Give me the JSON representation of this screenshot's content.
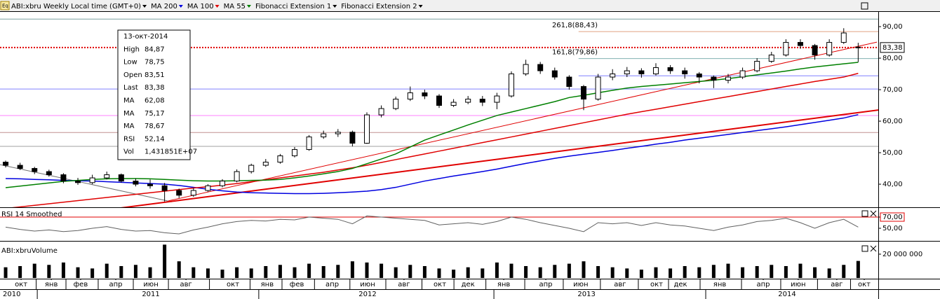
{
  "toolbar": {
    "symbol": "ABI:xbru Weekly Local time (GMT+0)",
    "studies": [
      {
        "label": "MA 200",
        "color": "#0000e0"
      },
      {
        "label": "MA 100",
        "color": "#e00000"
      },
      {
        "label": "MA 55",
        "color": "#008000"
      },
      {
        "label": "Fibonacci Extension 1",
        "color": "#000000"
      },
      {
        "label": "Fibonacci Extension 2",
        "color": "#000000"
      }
    ]
  },
  "info_box": {
    "date": "13-окт-2014",
    "rows": [
      {
        "label": "High",
        "value": "84,87",
        "color": "#000000"
      },
      {
        "label": "Low",
        "value": "78,75",
        "color": "#000000"
      },
      {
        "label": "Open",
        "value": "83,51",
        "color": "#000000"
      },
      {
        "label": "Last",
        "value": "83,38",
        "color": "#000000"
      },
      {
        "label": "MA",
        "value": "62,08",
        "color": "#0000e0"
      },
      {
        "label": "MA",
        "value": "75,17",
        "color": "#e00000"
      },
      {
        "label": "MA",
        "value": "78,67",
        "color": "#008000"
      },
      {
        "label": "RSI",
        "value": "52,14",
        "color": "#000000"
      },
      {
        "label": "Vol",
        "value": "1,431851E+07",
        "color": "#000000"
      }
    ]
  },
  "x_axis": {
    "xlim": [
      -0.39,
      60.39
    ],
    "months": [
      {
        "value": 1.07,
        "label": "окт"
      },
      {
        "value": 3.16,
        "label": "янв"
      },
      {
        "value": 5.19,
        "label": "фев"
      },
      {
        "value": 7.62,
        "label": "апр"
      },
      {
        "value": 10.05,
        "label": "июн"
      },
      {
        "value": 12.48,
        "label": "авг"
      },
      {
        "value": 15.73,
        "label": "окт"
      },
      {
        "value": 18.1,
        "label": "янв"
      },
      {
        "value": 20.15,
        "label": "фев"
      },
      {
        "value": 22.6,
        "label": "апр"
      },
      {
        "value": 25.05,
        "label": "июн"
      },
      {
        "value": 27.57,
        "label": "авг"
      },
      {
        "value": 30.05,
        "label": "окт"
      },
      {
        "value": 32.0,
        "label": "дек"
      },
      {
        "value": 34.47,
        "label": "янв"
      },
      {
        "value": 37.38,
        "label": "апр"
      },
      {
        "value": 39.8,
        "label": "июн"
      },
      {
        "value": 42.52,
        "label": "авг"
      },
      {
        "value": 45.05,
        "label": "окт"
      },
      {
        "value": 46.7,
        "label": "дек"
      },
      {
        "value": 49.42,
        "label": "янв"
      },
      {
        "value": 52.43,
        "label": "апр"
      },
      {
        "value": 54.85,
        "label": "июн"
      },
      {
        "value": 57.52,
        "label": "авг"
      },
      {
        "value": 59.42,
        "label": "окт"
      }
    ],
    "years": [
      {
        "value": 0.83,
        "label": "2010"
      },
      {
        "value": 10.05,
        "label": "2011"
      },
      {
        "value": 25.05,
        "label": "2012"
      },
      {
        "value": 40.2,
        "label": "2013"
      },
      {
        "value": 54.08,
        "label": "2014"
      }
    ]
  },
  "chart_data": [
    {
      "type": "candlestick",
      "open": [
        47,
        46,
        45,
        44,
        43,
        41,
        40.5,
        42,
        43,
        41,
        40,
        39.5,
        38,
        36.5,
        38,
        39.5,
        41,
        44,
        46,
        47,
        49,
        51,
        55,
        56,
        56.5,
        53,
        62,
        64,
        67,
        69,
        68,
        65,
        66,
        67,
        66,
        68,
        75,
        78,
        76,
        74,
        71,
        67,
        74,
        75,
        76,
        75,
        77,
        76,
        75,
        74,
        73,
        74,
        76,
        79,
        81,
        85,
        84,
        81,
        85,
        83.51
      ],
      "high": [
        47.5,
        46.8,
        45.5,
        44.6,
        43.5,
        42,
        43,
        44,
        43.4,
        41.8,
        41.5,
        40.4,
        38.6,
        38.8,
        40,
        41.6,
        44.7,
        46.5,
        48,
        49.6,
        51.8,
        55.6,
        57,
        57.5,
        57,
        62.8,
        65,
        67.8,
        71,
        70,
        68.6,
        67,
        68,
        68,
        69,
        75.8,
        79.5,
        78.8,
        77,
        74.6,
        71.5,
        75,
        76.5,
        77.2,
        76.8,
        78.4,
        77.8,
        77,
        75.6,
        74.5,
        75,
        77,
        80,
        82,
        86,
        86,
        84.5,
        86,
        89.5,
        84.87
      ],
      "low": [
        45.3,
        44.5,
        43.2,
        42.4,
        40.3,
        39.8,
        40,
        41.5,
        40.5,
        39.3,
        38.6,
        34.5,
        35.6,
        36,
        37.6,
        39,
        40.6,
        43.4,
        45.5,
        46.5,
        48.5,
        50.6,
        54.4,
        55,
        52,
        52.8,
        61.2,
        63.5,
        66.4,
        67,
        64.2,
        64.5,
        65.4,
        64.8,
        63.8,
        67.5,
        74.4,
        75,
        73.2,
        70,
        63.5,
        66.5,
        73,
        74,
        73.8,
        74.5,
        75,
        73.5,
        72,
        70.5,
        72,
        73.4,
        75.5,
        78.5,
        80.5,
        83,
        79.5,
        80.5,
        84.5,
        78.75
      ],
      "close": [
        46,
        45,
        44,
        43,
        41,
        40.5,
        42,
        43,
        41,
        40,
        39.5,
        38,
        36.5,
        38,
        39.5,
        41,
        44,
        46,
        47,
        49,
        51,
        55,
        56,
        56.5,
        53,
        62,
        64,
        67,
        69,
        68,
        65,
        66,
        67,
        66,
        68,
        75,
        78,
        76,
        74,
        71,
        67,
        74,
        75,
        76,
        75,
        77,
        76,
        75,
        74,
        73,
        74,
        76,
        79,
        81,
        85,
        84,
        81,
        85,
        88,
        83.38
      ],
      "series": [
        {
          "name": "MA 200",
          "color": "#0000e0",
          "values": [
            41.8,
            41.7,
            41.5,
            41.4,
            41.2,
            41.1,
            41,
            40.8,
            40.6,
            40.4,
            40.2,
            40,
            39.6,
            39,
            38.4,
            37.9,
            37.5,
            37.3,
            37.2,
            37.1,
            37,
            37,
            37.1,
            37.3,
            37.5,
            37.8,
            38.3,
            39,
            40,
            41,
            41.8,
            42.6,
            43.3,
            44,
            44.8,
            45.7,
            46.6,
            47.4,
            48.2,
            48.9,
            49.5,
            50.1,
            50.7,
            51.4,
            52,
            52.7,
            53.3,
            54,
            54.6,
            55.2,
            55.8,
            56.4,
            57,
            57.6,
            58.2,
            58.9,
            59.6,
            60.3,
            61,
            62.08
          ]
        },
        {
          "name": "MA 100",
          "color": "#e00000",
          "values": [
            32.3,
            32.8,
            33.3,
            33.8,
            34.3,
            34.8,
            35.3,
            35.8,
            36.3,
            36.8,
            37.3,
            37.8,
            38.3,
            38.8,
            39.2,
            39.7,
            40.2,
            40.8,
            41.4,
            42,
            42.6,
            43.2,
            43.8,
            44.5,
            45.2,
            46,
            46.9,
            47.8,
            48.7,
            49.6,
            50.5,
            51.4,
            52.3,
            53.2,
            54.1,
            55,
            55.9,
            56.8,
            57.7,
            58.6,
            59.5,
            60.4,
            61.3,
            62.2,
            63,
            63.8,
            64.6,
            65.4,
            66.2,
            67,
            67.8,
            68.6,
            69.4,
            70.2,
            71,
            71.8,
            72.6,
            73.3,
            74,
            75.17
          ]
        },
        {
          "name": "MA 55",
          "color": "#008000",
          "values": [
            38.9,
            39.4,
            39.9,
            40.4,
            40.9,
            41.2,
            41.5,
            41.7,
            41.8,
            41.8,
            41.7,
            41.5,
            41.3,
            41.1,
            41,
            41,
            41.1,
            41.2,
            41.3,
            41.5,
            42,
            42.6,
            43.3,
            44,
            45,
            46.5,
            48,
            49.6,
            51.8,
            54,
            55.6,
            57.2,
            58.8,
            60.3,
            61.8,
            62.9,
            64,
            65.1,
            66.2,
            67.5,
            68.2,
            69,
            69.8,
            70.5,
            71,
            71.4,
            71.8,
            72.2,
            72.6,
            73,
            73.5,
            74.1,
            74.7,
            75.3,
            75.9,
            76.6,
            77.2,
            77.7,
            78.2,
            78.67
          ]
        }
      ],
      "trend_lines": [
        {
          "color": "#707070",
          "x": [
            -0.39,
            11.5
          ],
          "y": [
            46.2,
            34.4
          ]
        },
        {
          "color": "#e00000",
          "x": [
            11.26,
            60.3
          ],
          "y": [
            34.7,
            85.1
          ]
        },
        {
          "color": "#e00000",
          "x": [
            7.86,
            60.5
          ],
          "y": [
            32.4,
            63.6
          ],
          "width": 2
        }
      ],
      "levels": [
        {
          "value": 92.4,
          "color": "#7aa0a0"
        },
        {
          "value": 88.43,
          "color": "#e0a080",
          "label": "261,8(88,43)",
          "from": 39.65
        },
        {
          "value": 79.86,
          "color": "#80b0b0",
          "label": "161,8(79,86)",
          "from": 39.65
        },
        {
          "value": 74.4,
          "color": "#8080ff",
          "from": 39.65
        },
        {
          "value": 70.2,
          "color": "#8080ff"
        },
        {
          "value": 61.8,
          "color": "#ff80ff"
        },
        {
          "value": 56.4,
          "color": "#c09090"
        },
        {
          "value": 52,
          "color": "#a0a0a0"
        }
      ],
      "last_price": {
        "value": 83.38,
        "label": "83,38",
        "color": "#e00000"
      },
      "ylim": [
        32.9,
        94.9
      ],
      "yticks": [
        {
          "value": 40,
          "label": "40,00"
        },
        {
          "value": 50,
          "label": "50,00"
        },
        {
          "value": 60,
          "label": "60,00"
        },
        {
          "value": 70,
          "label": "70,00"
        },
        {
          "value": 80,
          "label": "80,00"
        },
        {
          "value": 90,
          "label": "90,00"
        }
      ]
    },
    {
      "type": "line",
      "title": "RSI 14 Smoothed",
      "series": [
        {
          "name": "RSI",
          "color": "#606060",
          "values": [
            52,
            48,
            45,
            47,
            44,
            46,
            50,
            53,
            48,
            45,
            46,
            42,
            40,
            47,
            52,
            58,
            62,
            64,
            63,
            66,
            65,
            70,
            68,
            66,
            58,
            72,
            70,
            68,
            66,
            64,
            56,
            58,
            60,
            57,
            62,
            70,
            66,
            60,
            55,
            50,
            44,
            60,
            58,
            60,
            55,
            60,
            56,
            54,
            50,
            46,
            52,
            56,
            62,
            64,
            68,
            60,
            50,
            60,
            66,
            52.14
          ]
        }
      ],
      "levels": [
        {
          "value": 70,
          "color": "#e00000"
        }
      ],
      "ylim": [
        30,
        85
      ],
      "yticks": [
        {
          "value": 50,
          "label": "50,00"
        },
        {
          "value": 70,
          "label": "70,00"
        }
      ]
    },
    {
      "type": "bar",
      "title": "ABI:xbruVolume",
      "color": "#000000",
      "values": [
        9000000,
        10000000,
        12000000,
        11000000,
        13000000,
        9000000,
        8000000,
        12000000,
        10000000,
        11000000,
        9000000,
        28000000,
        14000000,
        9000000,
        8000000,
        7000000,
        9000000,
        8000000,
        10000000,
        11000000,
        9000000,
        12000000,
        10000000,
        11000000,
        14000000,
        13000000,
        12000000,
        9000000,
        11000000,
        10000000,
        8000000,
        7000000,
        9000000,
        8000000,
        13000000,
        12000000,
        10000000,
        9000000,
        11000000,
        12000000,
        14000000,
        10000000,
        9000000,
        8000000,
        7000000,
        9000000,
        8000000,
        10000000,
        9000000,
        11000000,
        12000000,
        9000000,
        10000000,
        11000000,
        10000000,
        12000000,
        9000000,
        8000000,
        11000000,
        14318510
      ],
      "ylim": [
        0,
        28800000
      ],
      "yticks": [
        {
          "value": 20000000,
          "label": "20 000 000"
        }
      ]
    }
  ]
}
